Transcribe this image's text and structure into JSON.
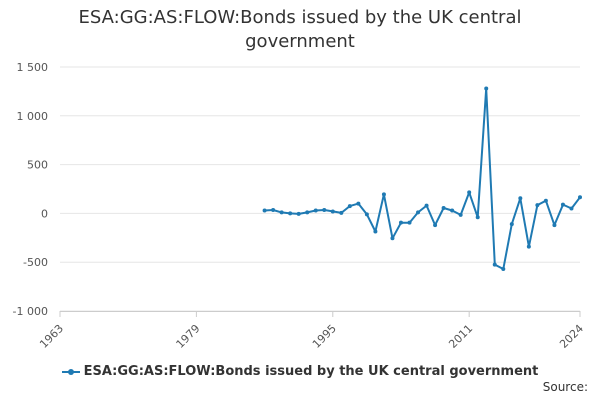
{
  "colors": {
    "series": "#1f7ab3",
    "grid": "#e6e6e6",
    "axis": "#cccccc"
  },
  "source_label": "Source:",
  "chart_data": {
    "type": "line",
    "title": "ESA:GG:AS:FLOW:Bonds issued by the UK central government",
    "xlabel": "",
    "ylabel": "",
    "xlim": [
      1963,
      2024
    ],
    "ylim": [
      -1000,
      1500
    ],
    "x_ticks": [
      1963,
      1979,
      1995,
      2011,
      2024
    ],
    "y_ticks": [
      -1000,
      -500,
      0,
      500,
      1000,
      1500
    ],
    "y_tick_labels": [
      "-1 000",
      "-500",
      "0",
      "500",
      "1 000",
      "1 500"
    ],
    "grid": "horizontal",
    "legend_position": "bottom",
    "series": [
      {
        "name": "ESA:GG:AS:FLOW:Bonds issued by the UK central government",
        "x": [
          1987,
          1988,
          1989,
          1990,
          1991,
          1992,
          1993,
          1994,
          1995,
          1996,
          1997,
          1998,
          1999,
          2000,
          2001,
          2002,
          2003,
          2004,
          2005,
          2006,
          2007,
          2008,
          2009,
          2010,
          2011,
          2012,
          2013,
          2014,
          2015,
          2016,
          2017,
          2018,
          2019,
          2020,
          2021,
          2022,
          2023,
          2024
        ],
        "values": [
          30,
          35,
          10,
          0,
          -5,
          10,
          30,
          35,
          20,
          5,
          75,
          100,
          -10,
          -185,
          195,
          -255,
          -95,
          -95,
          10,
          80,
          -120,
          55,
          30,
          -15,
          215,
          -40,
          1280,
          -525,
          -570,
          -110,
          155,
          -340,
          85,
          130,
          -120,
          90,
          50,
          165
        ]
      }
    ]
  }
}
